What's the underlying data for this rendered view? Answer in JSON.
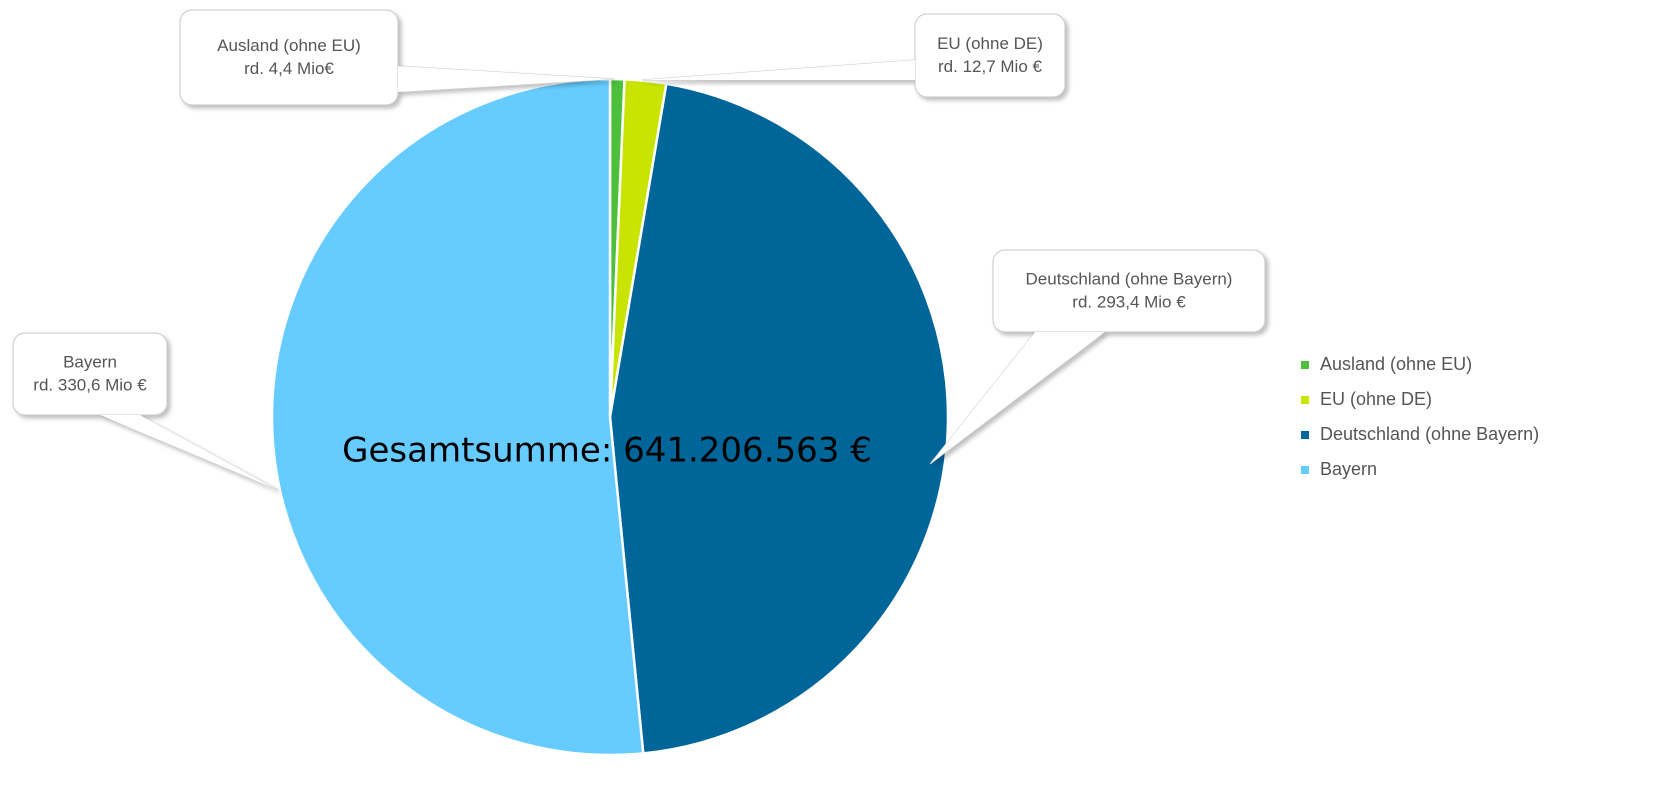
{
  "chart_data": {
    "type": "pie",
    "categories": [
      "Ausland (ohne EU)",
      "EU (ohne DE)",
      "Deutschland (ohne Bayern)",
      "Bayern"
    ],
    "values": [
      4.4,
      12.7,
      293.4,
      330.6
    ],
    "value_labels": [
      "rd. 4,4 Mio€",
      "rd. 12,7 Mio €",
      "rd. 293,4 Mio €",
      "rd. 330,6 Mio €"
    ],
    "colors": [
      "#4cbf3c",
      "#c8e400",
      "#006699",
      "#66ccff"
    ],
    "annotation": "Gesamtsumme:  641.206.563 €",
    "legend": "right"
  }
}
